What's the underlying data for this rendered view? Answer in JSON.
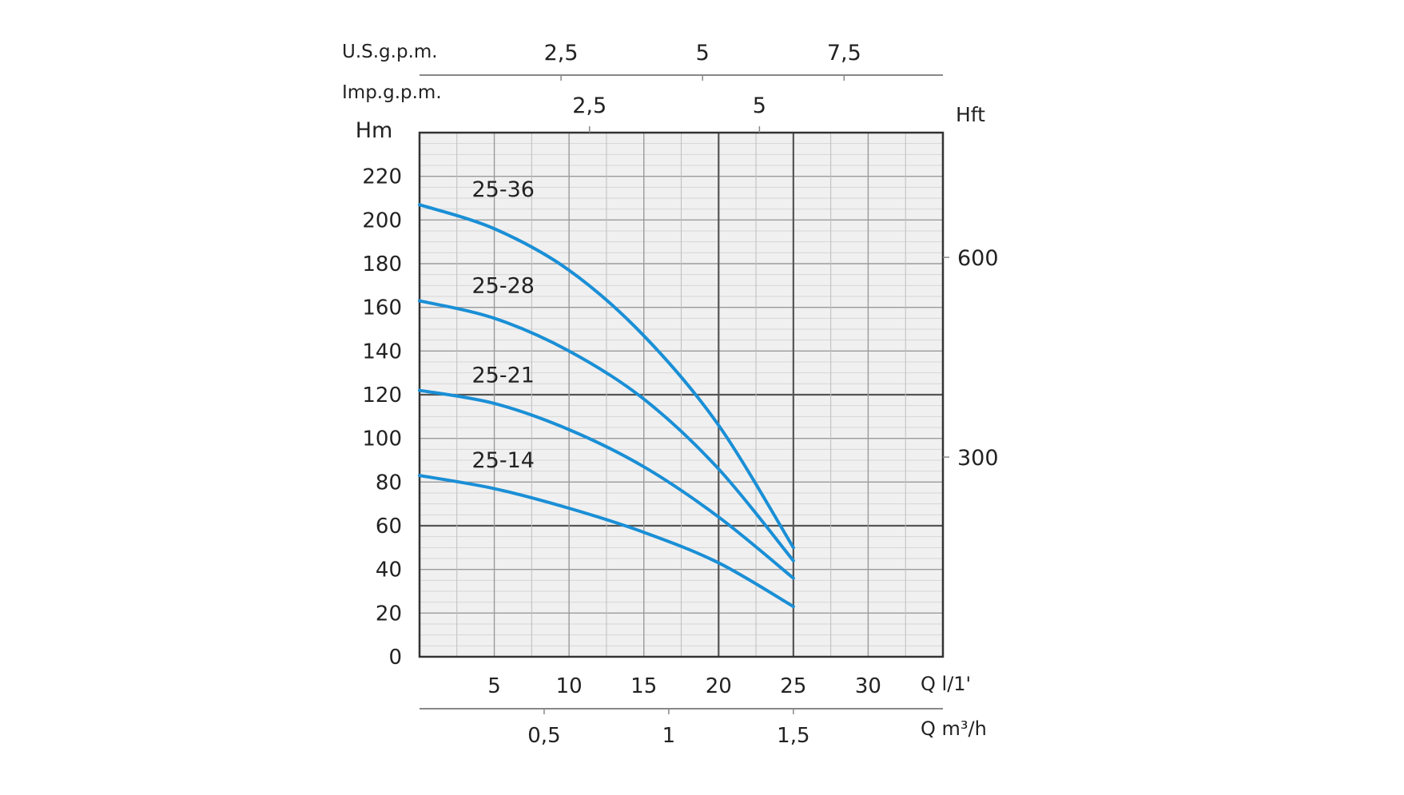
{
  "chart_data": {
    "type": "line",
    "y_title": "Hm",
    "y_ticks": [
      "0",
      "20",
      "40",
      "60",
      "80",
      "100",
      "120",
      "140",
      "160",
      "180",
      "200",
      "220"
    ],
    "y_range": [
      0,
      240
    ],
    "x_range": [
      0,
      35
    ],
    "x_unit_label": "Q l/1'",
    "x_ticks": [
      {
        "value": 5,
        "label": "5"
      },
      {
        "value": 10,
        "label": "10"
      },
      {
        "value": 15,
        "label": "15"
      },
      {
        "value": 20,
        "label": "20"
      },
      {
        "value": 25,
        "label": "25"
      },
      {
        "value": 30,
        "label": "30"
      }
    ],
    "m3h_label": "Q m³/h",
    "m3h_ticks": [
      {
        "value": 0.5,
        "label": "0,5"
      },
      {
        "value": 1,
        "label": "1"
      },
      {
        "value": 1.5,
        "label": "1,5"
      }
    ],
    "usgpm_label": "U.S.g.p.m.",
    "usgpm_ticks": [
      {
        "value": 2.5,
        "label": "2,5"
      },
      {
        "value": 5,
        "label": "5"
      },
      {
        "value": 7.5,
        "label": "7,5"
      }
    ],
    "impgpm_label": "Imp.g.p.m.",
    "impgpm_ticks": [
      {
        "value": 2.5,
        "label": "2,5"
      },
      {
        "value": 5,
        "label": "5"
      }
    ],
    "hft_label": "Hft",
    "hft_ticks": [
      {
        "value": 300,
        "label": "300"
      },
      {
        "value": 600,
        "label": "600"
      }
    ],
    "series": [
      {
        "name": "25-36",
        "color": "#1a8fd6",
        "x": [
          0,
          5,
          10,
          15,
          20,
          25
        ],
        "y": [
          207,
          196,
          177,
          147,
          106,
          50
        ]
      },
      {
        "name": "25-28",
        "color": "#1a8fd6",
        "x": [
          0,
          5,
          10,
          15,
          20,
          25
        ],
        "y": [
          163,
          155,
          140,
          118,
          86,
          44
        ]
      },
      {
        "name": "25-21",
        "color": "#1a8fd6",
        "x": [
          0,
          5,
          10,
          15,
          20,
          25
        ],
        "y": [
          122,
          116,
          104,
          87,
          64,
          36
        ]
      },
      {
        "name": "25-14",
        "color": "#1a8fd6",
        "x": [
          0,
          5,
          10,
          15,
          20,
          25
        ],
        "y": [
          83,
          77,
          68,
          57,
          43,
          23
        ]
      }
    ]
  }
}
